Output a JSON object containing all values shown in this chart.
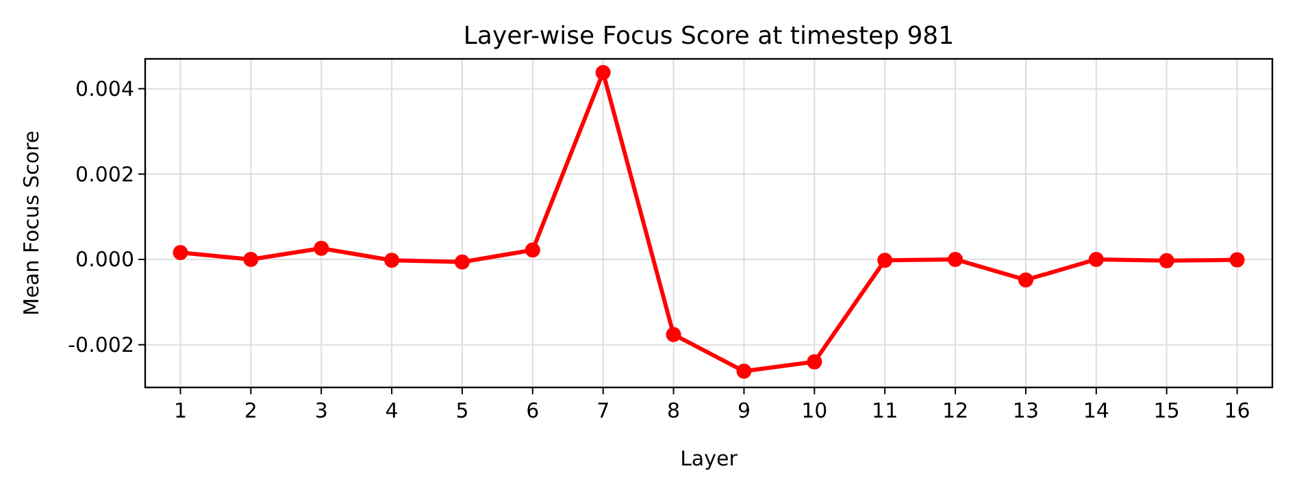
{
  "chart_data": {
    "type": "line",
    "title": "Layer-wise Focus Score at timestep 981",
    "xlabel": "Layer",
    "ylabel": "Mean Focus Score",
    "x": [
      1,
      2,
      3,
      4,
      5,
      6,
      7,
      8,
      9,
      10,
      11,
      12,
      13,
      14,
      15,
      16
    ],
    "series": [
      {
        "color": "#ff0000",
        "values": [
          0.00016,
          0.0,
          0.00026,
          -2e-05,
          -6e-05,
          0.00022,
          0.00438,
          -0.00176,
          -0.00262,
          -0.0024,
          -2e-05,
          0.0,
          -0.00048,
          0.0,
          -3e-05,
          -1e-05
        ]
      }
    ],
    "xlim": [
      0.5,
      16.5
    ],
    "xticks": [
      1,
      2,
      3,
      4,
      5,
      6,
      7,
      8,
      9,
      10,
      11,
      12,
      13,
      14,
      15,
      16
    ],
    "ylim": [
      -0.003,
      0.0047
    ],
    "yticks": [
      {
        "value": -0.002,
        "label": "-0.002"
      },
      {
        "value": 0,
        "label": "0.000"
      },
      {
        "value": 0.002,
        "label": "0.002"
      },
      {
        "value": 0.004,
        "label": "0.004"
      }
    ],
    "grid": true,
    "marker": "circle",
    "line_style": "solid"
  }
}
